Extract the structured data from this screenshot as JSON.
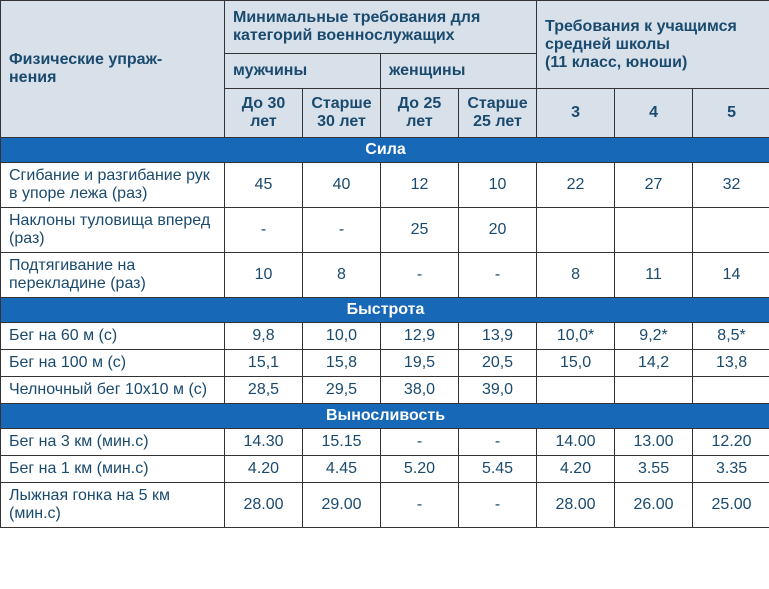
{
  "headers": {
    "exercise": "Физические упраж-\nнения",
    "military_req": "Минимальные требования для категорий военнослужащих",
    "school_req": "Требования к учащимся средней школы\n(11 класс, юноши)",
    "men": "мужчины",
    "women": "женщины",
    "men_young": "До 30 лет",
    "men_old": "Старше 30 лет",
    "women_young": "До 25 лет",
    "women_old": "Старше 25 лет",
    "grade3": "3",
    "grade4": "4",
    "grade5": "5"
  },
  "sections": {
    "strength": "Сила",
    "speed": "Быстрота",
    "endurance": "Выносливость"
  },
  "rows": {
    "pushups": {
      "label": "Сгибание и разгибание рук в упоре лежа (раз)",
      "d": [
        "45",
        "40",
        "12",
        "10",
        "22",
        "27",
        "32"
      ]
    },
    "situps": {
      "label": "Наклоны туловища вперед (раз)",
      "d": [
        "-",
        "-",
        "25",
        "20",
        "",
        "",
        ""
      ]
    },
    "pullups": {
      "label": "Подтягивание на перекладине (раз)",
      "d": [
        "10",
        "8",
        "-",
        "-",
        "8",
        "11",
        "14"
      ]
    },
    "run60": {
      "label": "Бег на 60 м (с)",
      "d": [
        "9,8",
        "10,0",
        "12,9",
        "13,9",
        "10,0*",
        "9,2*",
        "8,5*"
      ]
    },
    "run100": {
      "label": "Бег на 100 м (с)",
      "d": [
        "15,1",
        "15,8",
        "19,5",
        "20,5",
        "15,0",
        "14,2",
        "13,8"
      ]
    },
    "shuttle": {
      "label": "Челночный бег 10х10 м (с)",
      "d": [
        "28,5",
        "29,5",
        "38,0",
        "39,0",
        "",
        "",
        ""
      ]
    },
    "run3km": {
      "label": "Бег на 3 км (мин.с)",
      "d": [
        "14.30",
        "15.15",
        "-",
        "-",
        "14.00",
        "13.00",
        "12.20"
      ]
    },
    "run1km": {
      "label": "Бег на 1 км (мин.с)",
      "d": [
        "4.20",
        "4.45",
        "5.20",
        "5.45",
        "4.20",
        "3.55",
        "3.35"
      ]
    },
    "ski5km": {
      "label": "Лыжная гонка на 5 км (мин.с)",
      "d": [
        "28.00",
        "29.00",
        "-",
        "-",
        "28.00",
        "26.00",
        "25.00"
      ]
    }
  },
  "colors": {
    "header_bg": "#d8e0ea",
    "section_bg": "#1868b8",
    "section_fg": "#ffffff",
    "text": "#1a4a6e",
    "border": "#333333"
  }
}
